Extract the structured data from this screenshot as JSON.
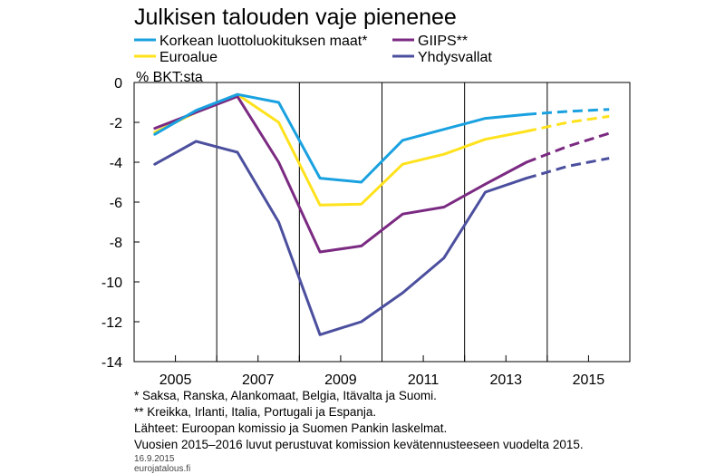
{
  "title": "Julkisen talouden vaje pienenee",
  "unit_label": "% BKT:sta",
  "footnotes": [
    "*  Saksa, Ranska, Alankomaat, Belgia, Itävalta ja Suomi.",
    "** Kreikka, Irlanti, Italia, Portugali ja Espanja.",
    "Lähteet: Euroopan komissio ja Suomen Pankin laskelmat.",
    "Vuosien 2015–2016 luvut perustuvat komission kevätennusteeseen vuodelta 2015."
  ],
  "date": "16.9.2015",
  "source_site": "eurojatalous.fi",
  "chart_data": {
    "type": "line",
    "title": "Julkisen talouden vaje pienenee",
    "ylabel": "% BKT:sta",
    "x": [
      2004.5,
      2005.5,
      2006.5,
      2007.5,
      2008.5,
      2009.5,
      2010.5,
      2011.5,
      2012.5,
      2013.5,
      2014.5,
      2015.5
    ],
    "xlim": [
      2004,
      2016
    ],
    "xticks": [
      2005,
      2007,
      2009,
      2011,
      2013,
      2015
    ],
    "xtick_labels": [
      "2005",
      "2007",
      "2009",
      "2011",
      "2013",
      "2015"
    ],
    "ylim": [
      -14,
      0
    ],
    "yticks": [
      0,
      -2,
      -4,
      -6,
      -8,
      -10,
      -12,
      -14
    ],
    "ytick_labels": [
      "0",
      "-2",
      "-4",
      "-6",
      "-8",
      "-10",
      "-12",
      "-14"
    ],
    "grid": false,
    "legend_placement": "top",
    "forecast_from_x": 2013.5,
    "series": [
      {
        "name": "Korkean luottoluokituksen maat*",
        "color": "#1aa1e0",
        "values": [
          -2.6,
          -1.4,
          -0.6,
          -1.0,
          -4.8,
          -5.0,
          -2.9,
          -2.35,
          -1.8,
          -1.6,
          -1.45,
          -1.35
        ]
      },
      {
        "name": "GIIPS**",
        "color": "#7b2a82",
        "values": [
          -2.3,
          -1.5,
          -0.7,
          -4.0,
          -8.5,
          -8.2,
          -6.6,
          -6.25,
          -5.1,
          -4.0,
          -3.2,
          -2.55
        ]
      },
      {
        "name": "Euroalue",
        "color": "#ffe21c",
        "values": [
          -2.5,
          -1.5,
          -0.6,
          -2.0,
          -6.15,
          -6.1,
          -4.1,
          -3.6,
          -2.85,
          -2.45,
          -2.0,
          -1.7
        ]
      },
      {
        "name": "Yhdysvallat",
        "color": "#4b4f9e",
        "values": [
          -4.1,
          -2.95,
          -3.5,
          -7.0,
          -12.65,
          -12.0,
          -10.55,
          -8.8,
          -5.5,
          -4.8,
          -4.2,
          -3.8
        ]
      }
    ]
  }
}
